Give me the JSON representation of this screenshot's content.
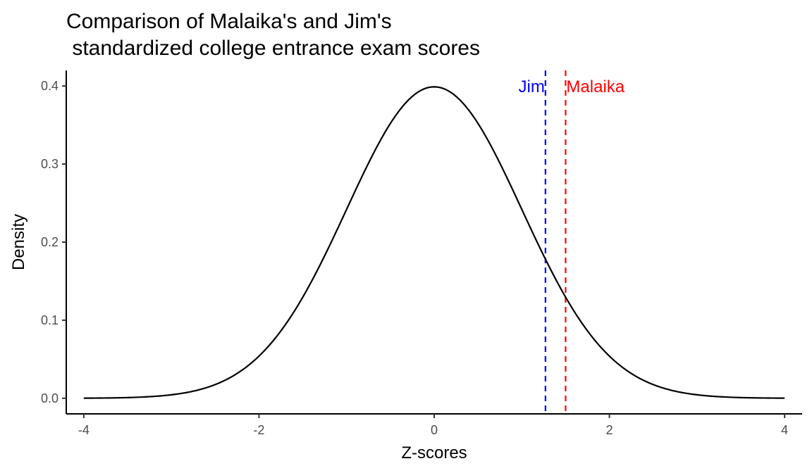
{
  "chart_data": {
    "type": "line",
    "title_lines": [
      "Comparison of Malaika's and Jim's",
      " standardized college entrance exam scores"
    ],
    "xlabel": "Z-scores",
    "ylabel": "Density",
    "xlim": [
      -4.2,
      4.2
    ],
    "ylim": [
      -0.02,
      0.42
    ],
    "x_ticks": [
      -4,
      -2,
      0,
      2,
      4
    ],
    "x_tick_labels": [
      "-4",
      "-2",
      "0",
      "2",
      "4"
    ],
    "y_ticks": [
      0.0,
      0.1,
      0.2,
      0.3,
      0.4
    ],
    "y_tick_labels": [
      "0.0",
      "0.1",
      "0.2",
      "0.3",
      "0.4"
    ],
    "grid": false,
    "series": [
      {
        "distribution": "standard normal density",
        "x_range": [
          -4,
          4
        ],
        "color": "#000000",
        "points": [
          [
            -4.0,
            0.0001
          ],
          [
            -3.5,
            0.0009
          ],
          [
            -3.0,
            0.0044
          ],
          [
            -2.5,
            0.0175
          ],
          [
            -2.0,
            0.054
          ],
          [
            -1.5,
            0.1295
          ],
          [
            -1.0,
            0.242
          ],
          [
            -0.5,
            0.3521
          ],
          [
            0.0,
            0.3989
          ],
          [
            0.5,
            0.3521
          ],
          [
            1.0,
            0.242
          ],
          [
            1.5,
            0.1295
          ],
          [
            2.0,
            0.054
          ],
          [
            2.5,
            0.0175
          ],
          [
            3.0,
            0.0044
          ],
          [
            3.5,
            0.0009
          ],
          [
            4.0,
            0.0001
          ]
        ]
      }
    ],
    "reference_lines": [
      {
        "name": "Jim",
        "x": 1.27,
        "color": "#0000ff",
        "style": "dashed",
        "label_y": 0.4,
        "label_anchor": "right"
      },
      {
        "name": "Malaika",
        "x": 1.5,
        "color": "#ff0000",
        "style": "dashed",
        "label_y": 0.4,
        "label_anchor": "left"
      }
    ]
  }
}
